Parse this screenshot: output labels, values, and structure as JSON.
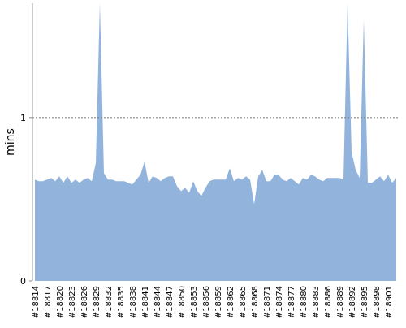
{
  "chart_data": {
    "type": "area",
    "y_label": "mins",
    "categories": [
      "#18814",
      null,
      null,
      "#18817",
      null,
      null,
      "#18820",
      null,
      null,
      "#18823",
      null,
      null,
      "#18826",
      null,
      null,
      "#18829",
      null,
      null,
      "#18832",
      null,
      null,
      "#18835",
      null,
      null,
      "#18838",
      null,
      null,
      "#18841",
      null,
      null,
      "#18844",
      null,
      null,
      "#18847",
      null,
      null,
      "#18850",
      null,
      null,
      "#18853",
      null,
      null,
      "#18856",
      null,
      null,
      "#18859",
      null,
      null,
      "#18862",
      null,
      null,
      "#18865",
      null,
      null,
      "#18868",
      null,
      null,
      "#18871",
      null,
      null,
      "#18874",
      null,
      null,
      "#18877",
      null,
      null,
      "#18880",
      null,
      null,
      "#18883",
      null,
      null,
      "#18886",
      null,
      null,
      "#18889",
      null,
      null,
      "#18892",
      null,
      null,
      "#18895",
      null,
      null,
      "#18898",
      null,
      null,
      "#18901",
      null,
      null
    ],
    "values": [
      0.62,
      0.61,
      0.61,
      0.62,
      0.63,
      0.61,
      0.64,
      0.6,
      0.64,
      0.6,
      0.62,
      0.6,
      0.62,
      0.63,
      0.61,
      0.72,
      1.7,
      0.66,
      0.62,
      0.62,
      0.61,
      0.61,
      0.61,
      0.6,
      0.59,
      0.62,
      0.65,
      0.73,
      0.6,
      0.64,
      0.63,
      0.61,
      0.63,
      0.64,
      0.64,
      0.58,
      0.55,
      0.57,
      0.54,
      0.61,
      0.55,
      0.52,
      0.57,
      0.61,
      0.62,
      0.62,
      0.62,
      0.62,
      0.69,
      0.61,
      0.63,
      0.62,
      0.64,
      0.62,
      0.47,
      0.64,
      0.68,
      0.61,
      0.61,
      0.65,
      0.65,
      0.62,
      0.61,
      0.63,
      0.61,
      0.59,
      0.63,
      0.62,
      0.65,
      0.64,
      0.62,
      0.61,
      0.63,
      0.63,
      0.63,
      0.63,
      0.62,
      1.7,
      0.79,
      0.68,
      0.63,
      1.6,
      0.6,
      0.6,
      0.62,
      0.64,
      0.61,
      0.65,
      0.6,
      0.63
    ],
    "color": "#92b3dc",
    "ylim": [
      0,
      1.7
    ],
    "yticks": [
      0,
      1
    ],
    "grid": true
  }
}
